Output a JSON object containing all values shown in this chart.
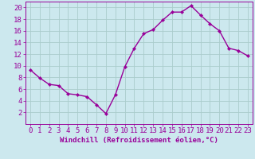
{
  "x": [
    0,
    1,
    2,
    3,
    4,
    5,
    6,
    7,
    8,
    9,
    10,
    11,
    12,
    13,
    14,
    15,
    16,
    17,
    18,
    19,
    20,
    21,
    22,
    23
  ],
  "y": [
    9.3,
    7.9,
    6.8,
    6.6,
    5.2,
    5.0,
    4.7,
    3.3,
    1.8,
    5.0,
    9.8,
    13.0,
    15.5,
    16.2,
    17.8,
    19.2,
    19.2,
    20.3,
    18.7,
    17.2,
    16.0,
    13.0,
    12.6,
    11.7
  ],
  "line_color": "#990099",
  "marker": "D",
  "marker_size": 2.2,
  "bg_color": "#cce8ee",
  "grid_color": "#aacccc",
  "xlabel": "Windchill (Refroidissement éolien,°C)",
  "xlim": [
    -0.5,
    23.5
  ],
  "ylim": [
    0,
    21
  ],
  "xticks": [
    0,
    1,
    2,
    3,
    4,
    5,
    6,
    7,
    8,
    9,
    10,
    11,
    12,
    13,
    14,
    15,
    16,
    17,
    18,
    19,
    20,
    21,
    22,
    23
  ],
  "yticks": [
    2,
    4,
    6,
    8,
    10,
    12,
    14,
    16,
    18,
    20
  ],
  "xlabel_fontsize": 6.5,
  "tick_fontsize": 6.5,
  "line_width": 1.0
}
